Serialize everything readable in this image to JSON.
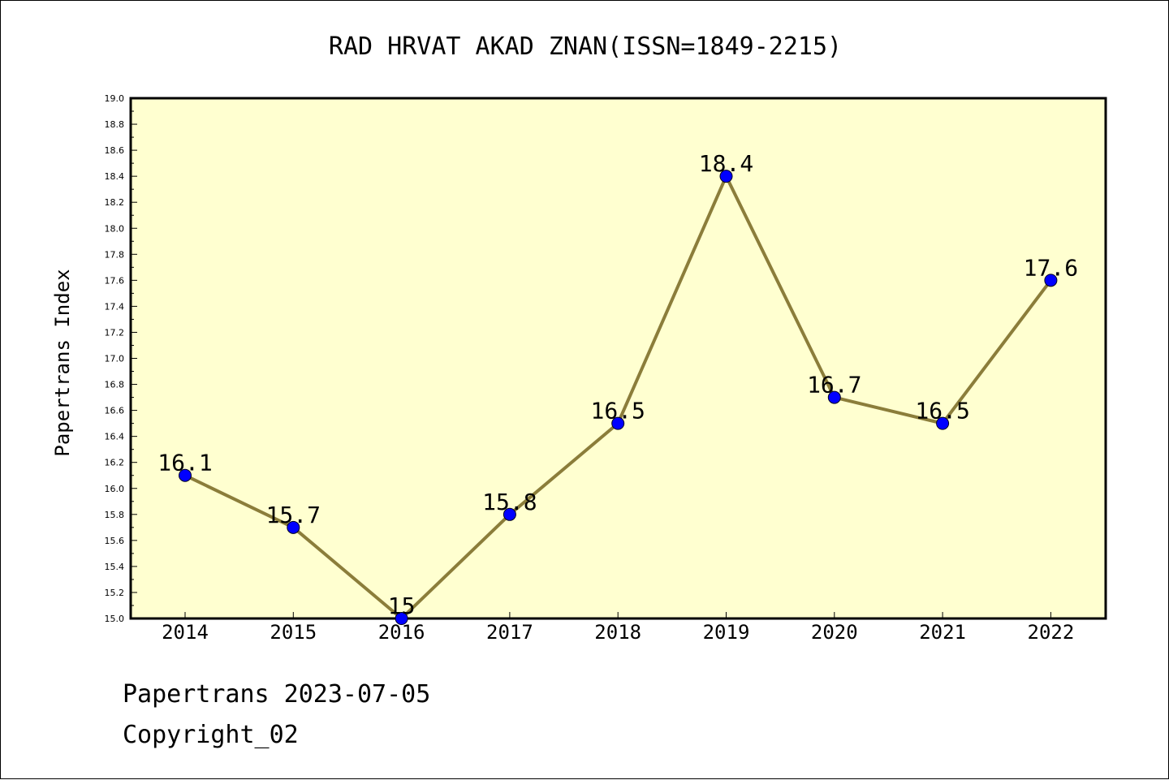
{
  "chart_data": {
    "type": "line",
    "title": "RAD HRVAT AKAD ZNAN(ISSN=1849-2215)",
    "xlabel": "",
    "ylabel": "Papertrans Index",
    "categories": [
      "2014",
      "2015",
      "2016",
      "2017",
      "2018",
      "2019",
      "2020",
      "2021",
      "2022"
    ],
    "series": [
      {
        "values": [
          16.1,
          15.7,
          15.0,
          15.8,
          16.5,
          18.4,
          16.7,
          16.5,
          17.6
        ]
      }
    ],
    "data_labels": [
      "16.1",
      "15.7",
      "15",
      "15.8",
      "16.5",
      "18.4",
      "16.7",
      "16.5",
      "17.6"
    ],
    "ylim": [
      15.0,
      19.0
    ],
    "yticks": [
      "15.0",
      "15.2",
      "15.4",
      "15.6",
      "15.8",
      "16.0",
      "16.2",
      "16.4",
      "16.6",
      "16.8",
      "17.0",
      "17.2",
      "17.4",
      "17.6",
      "17.8",
      "18.0",
      "18.2",
      "18.4",
      "18.6",
      "18.8",
      "19.0"
    ],
    "grid": false,
    "colors": {
      "plot_background": "#ffffd0",
      "line": "#8b7d3a",
      "marker": "#0000ff"
    }
  },
  "footer": {
    "line1": "Papertrans 2023-07-05",
    "line2": "Copyright_02"
  }
}
